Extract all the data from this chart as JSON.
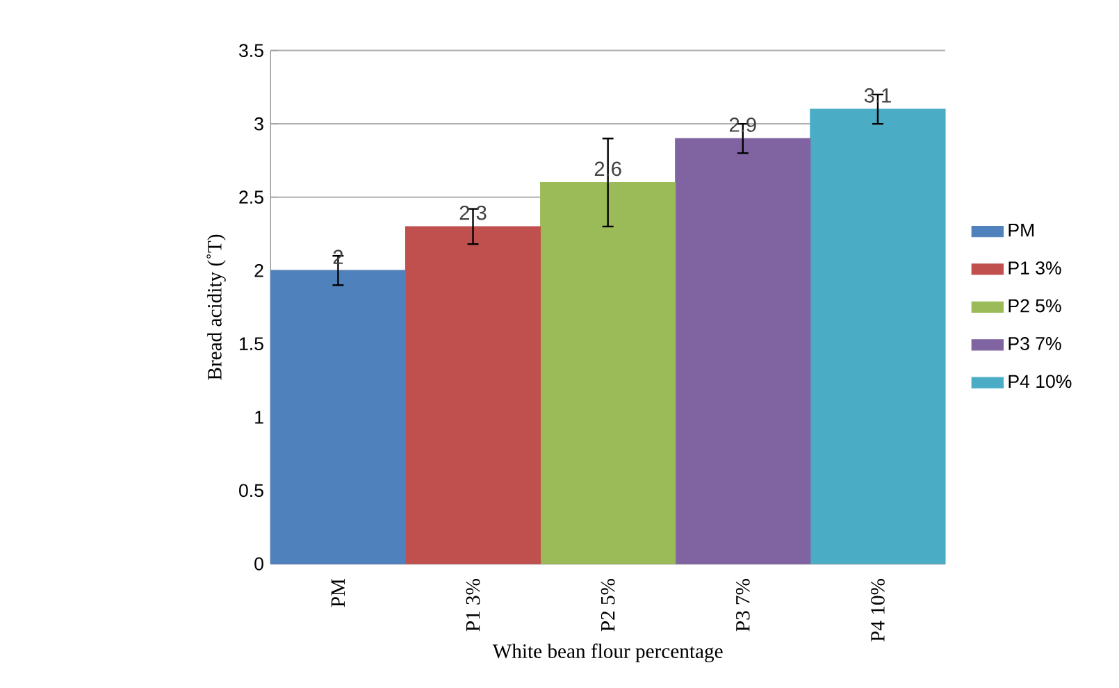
{
  "chart_data": {
    "type": "bar",
    "xlabel": "White bean flour percentage",
    "ylabel": "Bread acidity (˚T)",
    "categories": [
      "PM",
      "P1 3%",
      "P2 5%",
      "P3 7%",
      "P4 10%"
    ],
    "series": [
      {
        "name": "PM",
        "color": "#4f81bd",
        "values": [
          2,
          null,
          null,
          null,
          null
        ],
        "errors": [
          0.1,
          null,
          null,
          null,
          null
        ]
      },
      {
        "name": "P1 3%",
        "color": "#c0504d",
        "values": [
          null,
          2.3,
          null,
          null,
          null
        ],
        "errors": [
          null,
          0.12,
          null,
          null,
          null
        ]
      },
      {
        "name": "P2 5%",
        "color": "#9bbb59",
        "values": [
          null,
          null,
          2.6,
          null,
          null
        ],
        "errors": [
          null,
          null,
          0.3,
          null,
          null
        ]
      },
      {
        "name": "P3 7%",
        "color": "#8064a2",
        "values": [
          null,
          null,
          null,
          2.9,
          null
        ],
        "errors": [
          null,
          null,
          null,
          0.1,
          null
        ]
      },
      {
        "name": "P4 10%",
        "color": "#4bacc6",
        "values": [
          null,
          null,
          null,
          null,
          3.1
        ],
        "errors": [
          null,
          null,
          null,
          null,
          0.1
        ]
      }
    ],
    "stacked": true,
    "ylim": [
      0,
      3.5
    ],
    "yticks": [
      0,
      0.5,
      1,
      1.5,
      2,
      2.5,
      3,
      3.5
    ],
    "grid": "y",
    "legend": "right",
    "data_labels": true
  }
}
